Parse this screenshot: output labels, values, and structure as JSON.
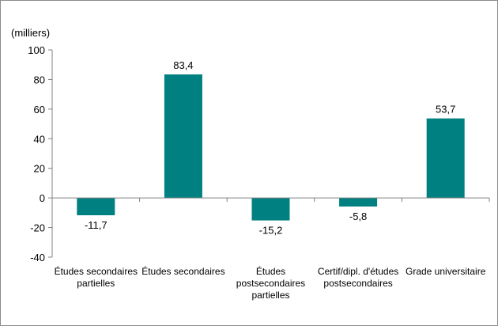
{
  "chart_data": {
    "type": "bar",
    "unit_label": "(milliers)",
    "categories": [
      [
        "Études secondaires",
        "partielles"
      ],
      [
        "Études secondaires"
      ],
      [
        "Études",
        "postsecondaires",
        "partielles"
      ],
      [
        "Certif/dipl. d'études",
        "postsecondaires"
      ],
      [
        "Grade universitaire"
      ]
    ],
    "values": [
      -11.7,
      83.4,
      -15.2,
      -5.8,
      53.7
    ],
    "value_labels": [
      "-11,7",
      "83,4",
      "-15,2",
      "-5,8",
      "53,7"
    ],
    "ylim": [
      -40,
      100
    ],
    "yticks": [
      -40,
      -20,
      0,
      20,
      40,
      60,
      80,
      100
    ],
    "ytick_labels": [
      "-40",
      "-20",
      "0",
      "20",
      "40",
      "60",
      "80",
      "100"
    ],
    "grid": false,
    "bar_color": "#008080",
    "axis_color": "#808080"
  }
}
